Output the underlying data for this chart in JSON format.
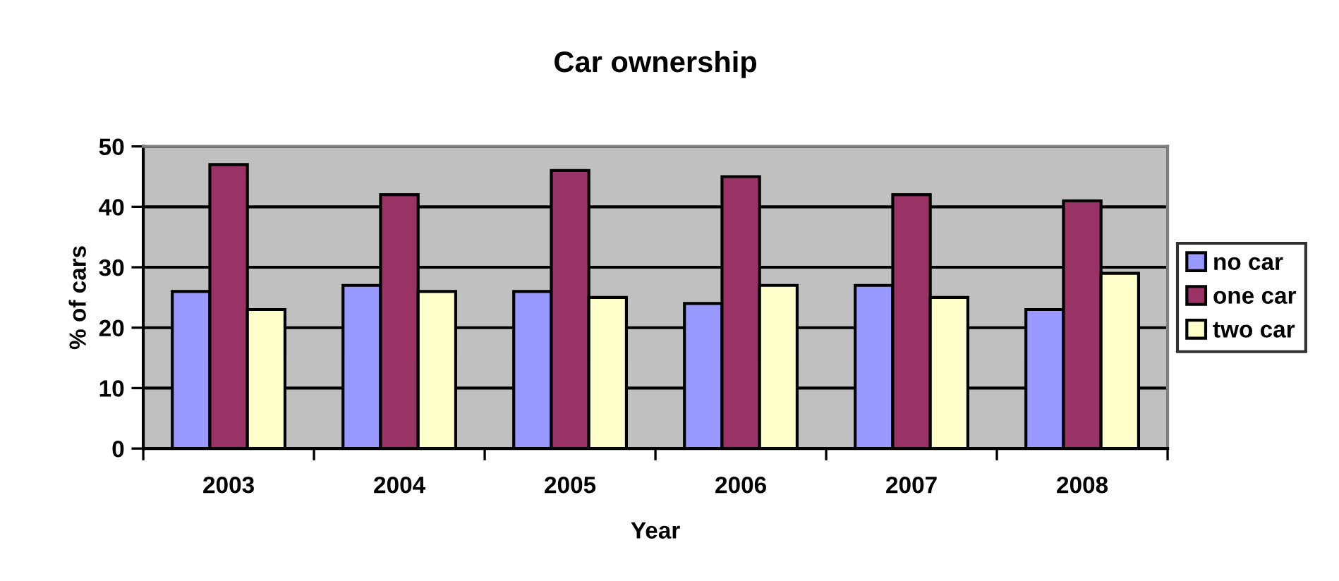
{
  "chart_data": {
    "type": "bar",
    "title": "Car ownership",
    "xlabel": "Year",
    "ylabel": "% of cars",
    "categories": [
      "2003",
      "2004",
      "2005",
      "2006",
      "2007",
      "2008"
    ],
    "series": [
      {
        "name": "no car",
        "color": "#9999ff",
        "values": [
          26,
          27,
          26,
          24,
          27,
          23
        ]
      },
      {
        "name": "one car",
        "color": "#993366",
        "values": [
          47,
          42,
          46,
          45,
          42,
          41
        ]
      },
      {
        "name": "two car",
        "color": "#ffffcc",
        "values": [
          23,
          26,
          25,
          27,
          25,
          29
        ]
      }
    ],
    "ylim": [
      0,
      50
    ],
    "yticks": [
      0,
      10,
      20,
      30,
      40,
      50
    ],
    "grid": "y",
    "legend": "right"
  }
}
